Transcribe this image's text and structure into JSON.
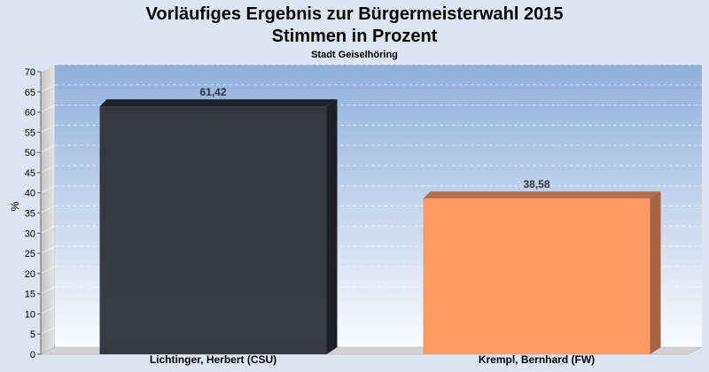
{
  "chart_data": {
    "type": "bar",
    "title": "Vorläufiges Ergebnis zur Bürgermeisterwahl 2015",
    "title_line2": "Stimmen in Prozent",
    "subtitle": "Stadt Geiselhöring",
    "xlabel": "",
    "ylabel": "%",
    "ylim": [
      0,
      70
    ],
    "ytick_step": 5,
    "grid": true,
    "categories": [
      "Lichtinger, Herbert (CSU)",
      "Krempl, Bernhard (FW)"
    ],
    "values": [
      61.42,
      38.58
    ],
    "value_labels": [
      "61,42",
      "38,58"
    ],
    "colors": [
      "#2e3038",
      "#ff9966"
    ]
  }
}
